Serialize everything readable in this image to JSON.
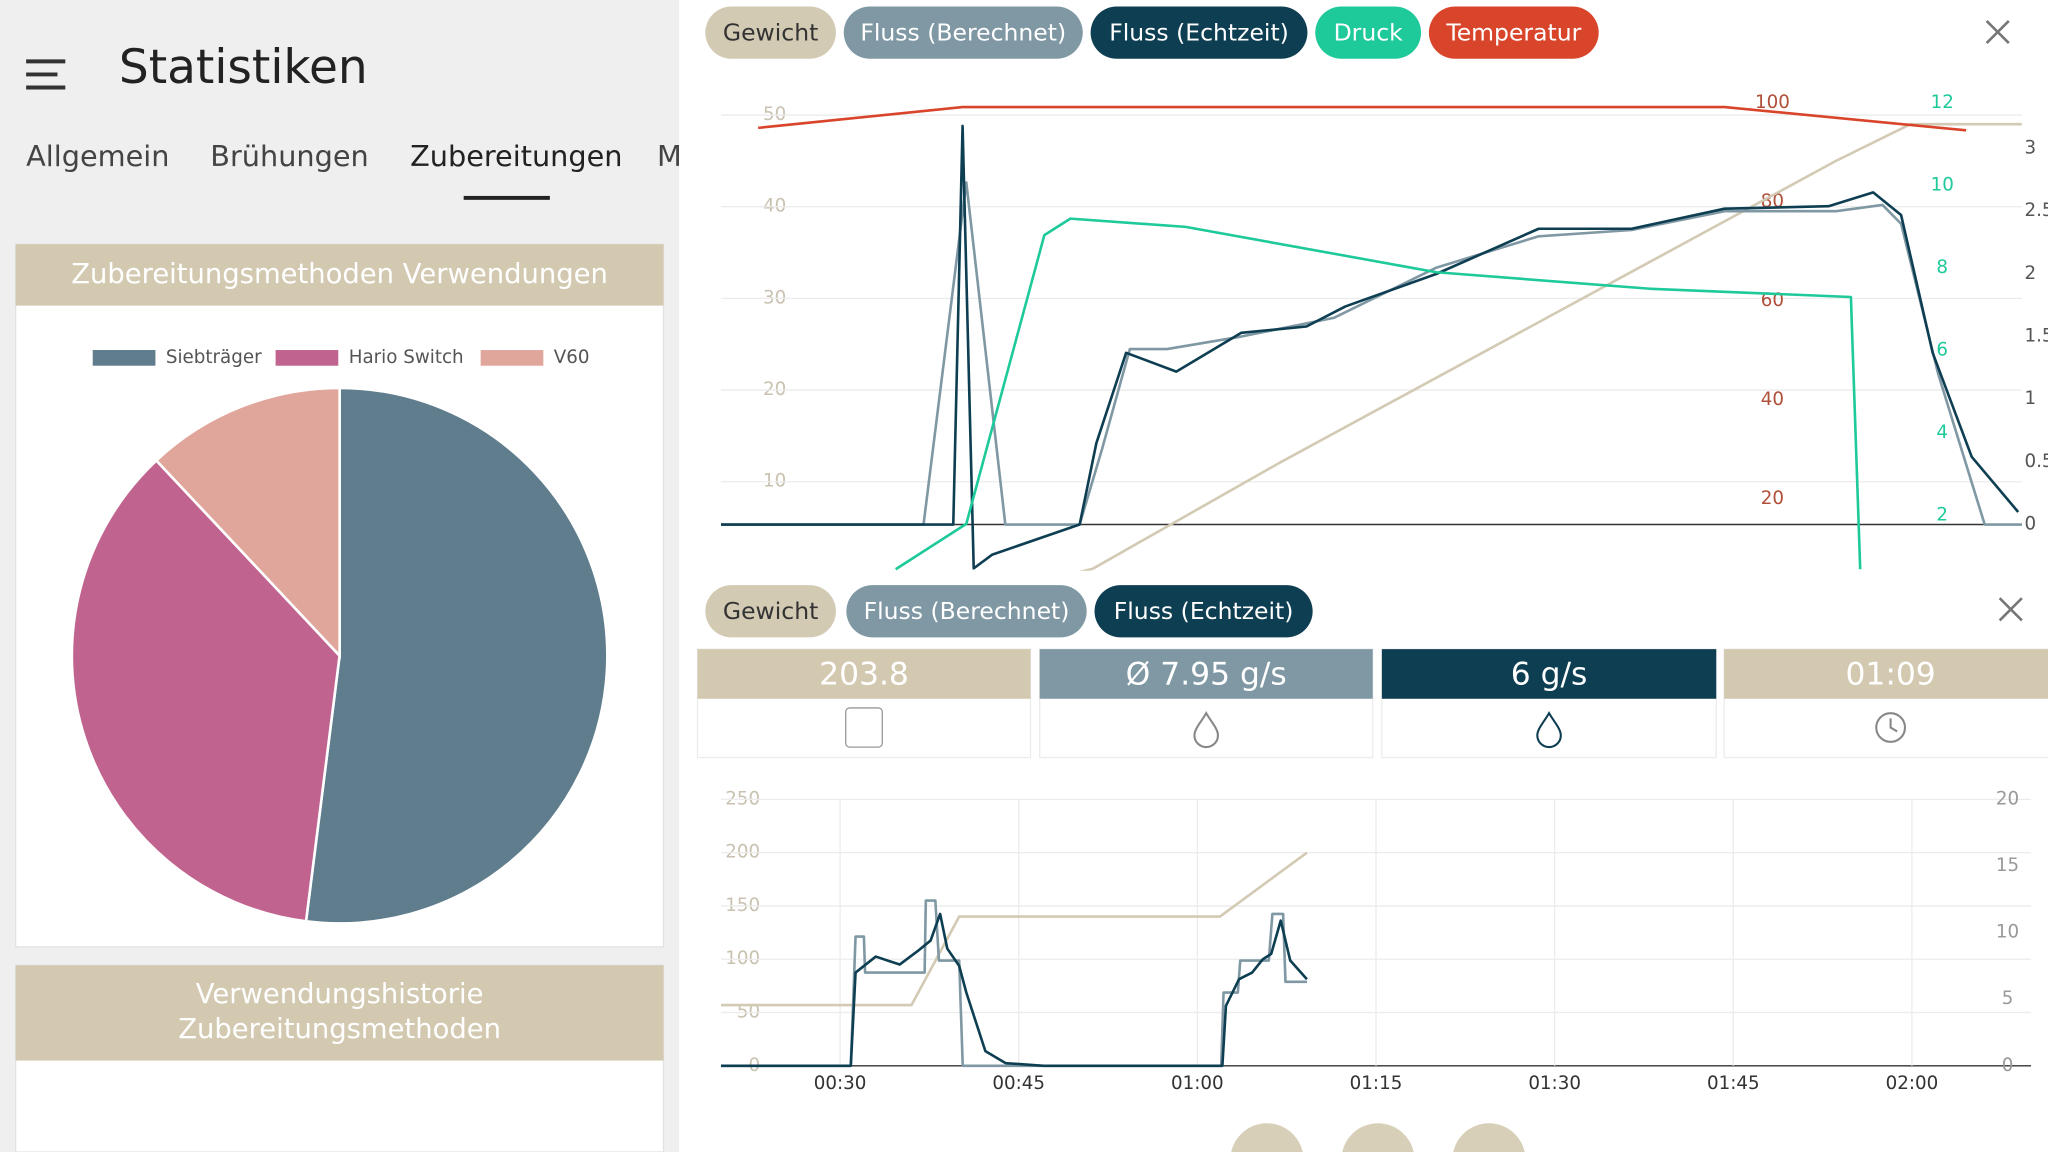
{
  "header": {
    "title": "Statistiken"
  },
  "tabs": [
    "Allgemein",
    "Brühungen",
    "Zubereitungen",
    "M"
  ],
  "cards": [
    {
      "title": "Zubereitungsmethoden Verwendungen",
      "chart_data": {
        "type": "pie",
        "categories": [
          "Siebträger",
          "Hario Switch",
          "V60"
        ],
        "values": [
          52,
          36,
          12
        ],
        "colors": [
          "#5f7d8c",
          "#c0648f",
          "#e0a69b"
        ]
      }
    },
    {
      "title_lines": [
        "Verwendungshistorie",
        "Zubereitungsmethoden"
      ]
    }
  ],
  "brew_chart": {
    "chart_data": {
      "type": "line",
      "xlim": [
        0,
        70
      ],
      "ylim": [
        0,
        54
      ],
      "yticks": [
        10,
        20,
        30,
        40,
        50
      ],
      "y2lim": [
        5,
        105
      ],
      "y2ticks": [
        20,
        40,
        60,
        80,
        100
      ],
      "y3lim": [
        0.6,
        12.6
      ],
      "y3ticks": [
        2,
        4,
        6,
        8,
        10,
        12
      ],
      "y4lim": [
        -0.39,
        3.56
      ],
      "y4ticks": [
        0,
        0.5,
        1,
        1.5,
        2,
        2.5,
        3
      ],
      "grid": true,
      "series": [
        {
          "name": "Gewicht",
          "color": "#d3cab4",
          "axis": "y",
          "x": [
            0,
            19,
            20,
            30,
            40,
            50,
            60,
            64,
            70
          ],
          "values": [
            0,
            0,
            0.5,
            12,
            23,
            34,
            45,
            49,
            49
          ]
        },
        {
          "name": "Fluss (Berechnet)",
          "color": "#7f98a4",
          "axis": "y4",
          "x": [
            0,
            10.9,
            13.2,
            15.3,
            19.3,
            20.5,
            22,
            24,
            28,
            33,
            38.5,
            44,
            49,
            54,
            60,
            62.5,
            63.5,
            65.5,
            68,
            70
          ],
          "values": [
            0,
            0,
            2.73,
            0,
            0,
            0.6,
            1.4,
            1.4,
            1.5,
            1.65,
            2.05,
            2.3,
            2.35,
            2.5,
            2.5,
            2.55,
            2.4,
            1.2,
            0,
            0
          ]
        },
        {
          "name": "Fluss (Echtzeit)",
          "color": "#0e3e52",
          "axis": "y4",
          "x": [
            0,
            12.5,
            13,
            13.6,
            14.6,
            19.3,
            20.2,
            21.8,
            24.5,
            28,
            31.5,
            33.6,
            38.5,
            44,
            49,
            54,
            59.6,
            62,
            63.5,
            65.2,
            67.3,
            69.8
          ],
          "values": [
            0,
            0,
            3.18,
            -0.35,
            -0.24,
            0,
            0.65,
            1.37,
            1.22,
            1.53,
            1.58,
            1.74,
            2.0,
            2.36,
            2.36,
            2.52,
            2.54,
            2.65,
            2.47,
            1.37,
            0.54,
            0.1
          ]
        },
        {
          "name": "Druck",
          "color": "#1ec99a",
          "axis": "y3",
          "x": [
            9.4,
            13.2,
            17.4,
            18.8,
            25,
            38.5,
            50,
            60.8,
            61.3
          ],
          "values": [
            0.7,
            1.8,
            8.8,
            9.2,
            9.0,
            7.9,
            7.5,
            7.3,
            0.7
          ]
        },
        {
          "name": "Temperatur",
          "color": "#d9452a",
          "axis": "y2",
          "x": [
            2,
            13,
            54,
            67
          ],
          "values": [
            95,
            99.2,
            99.2,
            94.5
          ]
        }
      ]
    }
  },
  "live": {
    "stats": [
      "203.8",
      "Ø 7.95 g/s",
      "6 g/s",
      "01:09"
    ],
    "chart_data": {
      "type": "line",
      "xlim": [
        20,
        130
      ],
      "xticks": [
        {
          "value": 30,
          "label": "00:30"
        },
        {
          "value": 45,
          "label": "00:45"
        },
        {
          "value": 60,
          "label": "01:00"
        },
        {
          "value": 75,
          "label": "01:15"
        },
        {
          "value": 90,
          "label": "01:30"
        },
        {
          "value": 105,
          "label": "01:45"
        },
        {
          "value": 120,
          "label": "02:00"
        }
      ],
      "ylim": [
        0,
        250
      ],
      "yticks": [
        0,
        50,
        100,
        150,
        200,
        250
      ],
      "y2lim": [
        0,
        20
      ],
      "y2ticks": [
        0,
        5,
        10,
        15,
        20
      ],
      "grid": true,
      "series": [
        {
          "name": "Gewicht",
          "color": "#d3cab4",
          "axis": "y",
          "x": [
            20,
            36,
            40,
            61.9,
            69.2
          ],
          "values": [
            57,
            57,
            140,
            140,
            200
          ]
        },
        {
          "name": "Fluss (Berechnet)",
          "color": "#7f98a4",
          "axis": "y2",
          "x": [
            20,
            30.9,
            31.3,
            32,
            32.1,
            37.1,
            37.2,
            38,
            38.3,
            40,
            40.3,
            62,
            62.2,
            63.4,
            63.6,
            66,
            66.3,
            67.2,
            67.4,
            69.2
          ],
          "values": [
            0,
            0,
            9.7,
            9.7,
            7,
            7,
            12.4,
            12.4,
            7.9,
            7.9,
            0,
            0,
            5.5,
            5.5,
            7.9,
            7.9,
            11.4,
            11.4,
            6.3,
            6.3
          ]
        },
        {
          "name": "Fluss (Echtzeit)",
          "color": "#0e3e52",
          "axis": "y2",
          "x": [
            20,
            30.9,
            31.3,
            33,
            35,
            36.5,
            37.6,
            38.4,
            39,
            40,
            40.6,
            42.2,
            43.9,
            47.1,
            62.1,
            62.4,
            63.5,
            64.6,
            65.5,
            66.2,
            67,
            67.8,
            69.2
          ],
          "values": [
            0,
            0,
            7,
            8.2,
            7.6,
            8.6,
            9.4,
            11.4,
            8.8,
            7.5,
            5.5,
            1.1,
            0.2,
            0,
            0,
            4.5,
            6.5,
            7,
            8,
            8.4,
            10.9,
            7.9,
            6.5
          ]
        }
      ]
    }
  }
}
